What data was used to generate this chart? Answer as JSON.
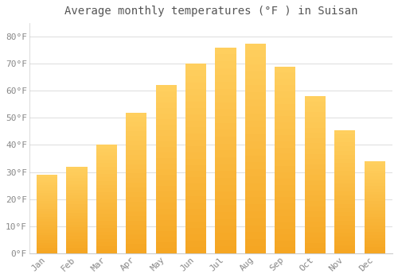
{
  "title": "Average monthly temperatures (°F ) in Suisan",
  "months": [
    "Jan",
    "Feb",
    "Mar",
    "Apr",
    "May",
    "Jun",
    "Jul",
    "Aug",
    "Sep",
    "Oct",
    "Nov",
    "Dec"
  ],
  "values": [
    29,
    32,
    40,
    52,
    62,
    70,
    76,
    77.5,
    69,
    58,
    45.5,
    34
  ],
  "bar_color_bottom": "#F5A623",
  "bar_color_top": "#FFD060",
  "background_color": "#ffffff",
  "plot_bg_color": "#ffffff",
  "grid_color": "#e0e0e0",
  "text_color": "#888888",
  "title_color": "#555555",
  "ylim": [
    0,
    85
  ],
  "yticks": [
    0,
    10,
    20,
    30,
    40,
    50,
    60,
    70,
    80
  ],
  "ytick_labels": [
    "0°F",
    "10°F",
    "20°F",
    "30°F",
    "40°F",
    "50°F",
    "60°F",
    "70°F",
    "80°F"
  ],
  "title_fontsize": 10,
  "tick_fontsize": 8,
  "bar_linewidth": 0,
  "bar_width": 0.7
}
